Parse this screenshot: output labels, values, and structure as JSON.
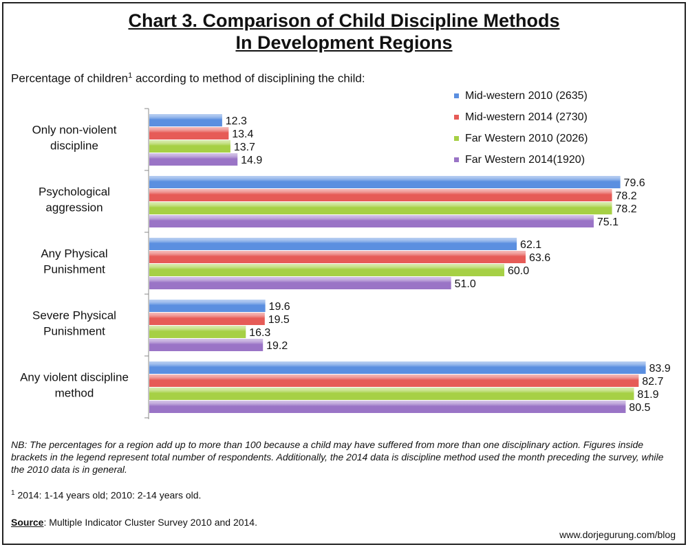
{
  "title_line1": "Chart 3. Comparison of Child Discipline Methods",
  "title_line2": "In Development Regions",
  "subtitle_pre": "Percentage of children",
  "subtitle_sup": "1",
  "subtitle_post": " according to method of disciplining the child:",
  "note": "NB: The percentages for a region add up to more than 100 because a child may have suffered from more than one disciplinary action. Figures inside brackets in the legend represent total number of respondents. Additionally, the 2014 data is discipline method used the month preceding the survey, while the 2010 data is in general.",
  "footnote_sup": "1",
  "footnote_text": " 2014: 1-14 years old; 2010: 2-14 years old.",
  "source_label": "Source",
  "source_text": ": Multiple Indicator Cluster Survey 2010 and 2014.",
  "credit": "www.dorjegurung.com/blog",
  "chart_data": {
    "type": "bar",
    "orientation": "horizontal",
    "categories": [
      [
        "Only non-violent",
        "discipline"
      ],
      [
        "Psychological",
        "aggression"
      ],
      [
        "Any Physical",
        "Punishment"
      ],
      [
        "Severe Physical",
        "Punishment"
      ],
      [
        "Any violent discipline",
        "method"
      ]
    ],
    "series": [
      {
        "name": "Mid-western 2010 (2635)",
        "color": "#5b8fe0",
        "values": [
          12.3,
          79.6,
          62.1,
          19.6,
          83.9
        ]
      },
      {
        "name": "Mid-western 2014 (2730)",
        "color": "#e65b57",
        "values": [
          13.4,
          78.2,
          63.6,
          19.5,
          82.7
        ]
      },
      {
        "name": "Far Western 2010 (2026)",
        "color": "#a6d045",
        "values": [
          13.7,
          78.2,
          60.0,
          16.3,
          81.9
        ]
      },
      {
        "name": "Far Western 2014(1920)",
        "color": "#9a74c6",
        "values": [
          14.9,
          75.1,
          51.0,
          19.2,
          80.5
        ]
      }
    ],
    "value_labels": [
      [
        "12.3",
        "79.6",
        "62.1",
        "19.6",
        "83.9"
      ],
      [
        "13.4",
        "78.2",
        "63.6",
        "19.5",
        "82.7"
      ],
      [
        "13.7",
        "78.2",
        "60.0",
        "16.3",
        "81.9"
      ],
      [
        "14.9",
        "75.1",
        "51.0",
        "19.2",
        "80.5"
      ]
    ],
    "xlim": [
      0,
      100
    ],
    "grid": false,
    "legend_position": "top-right"
  }
}
